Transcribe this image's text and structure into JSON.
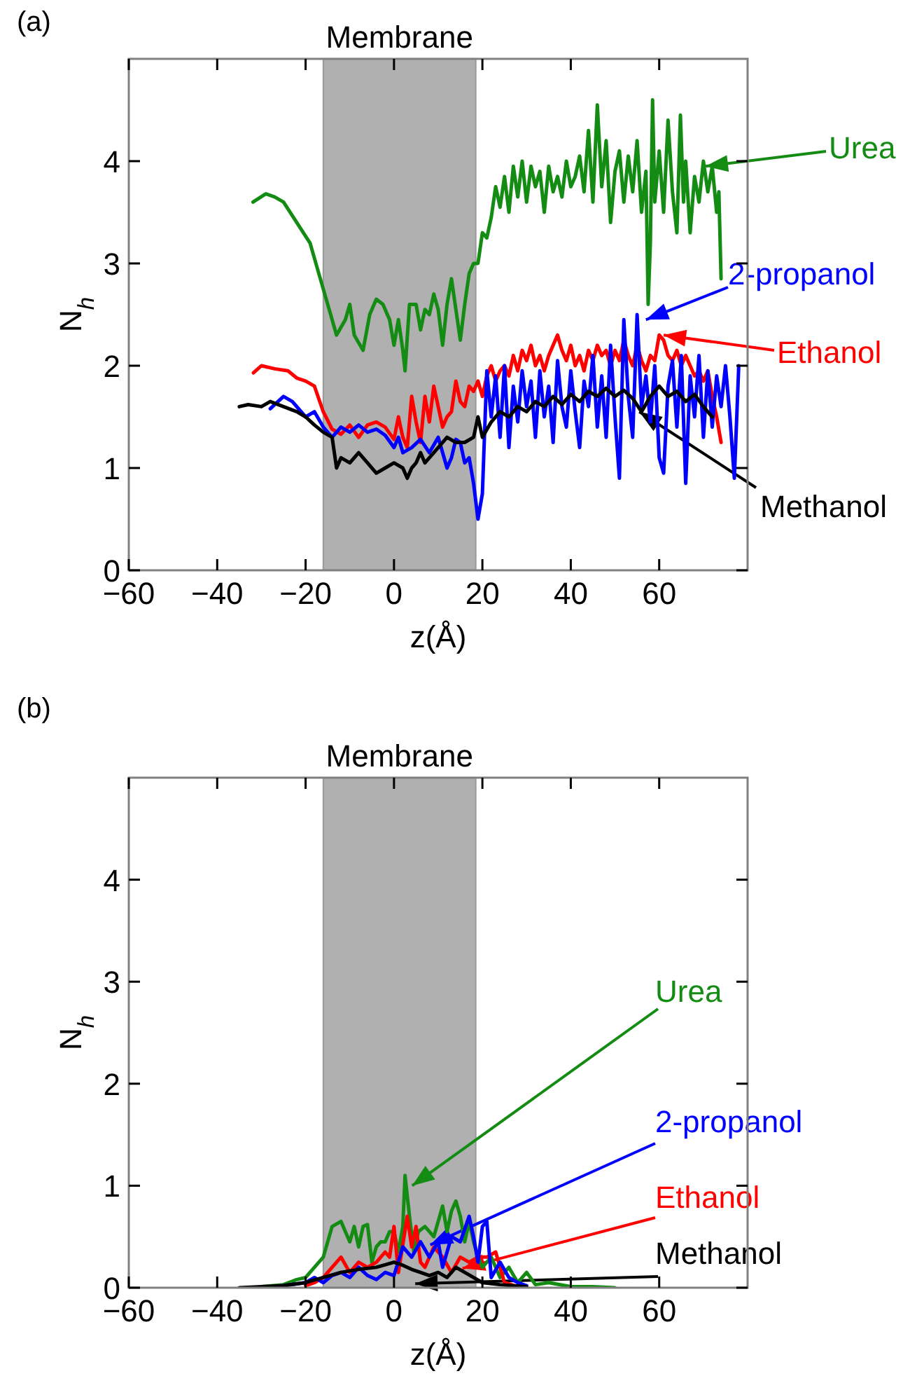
{
  "chart_data": [
    {
      "type": "line",
      "title": "(a)",
      "xlabel": "z(Å)",
      "ylabel": "N$_{h}$",
      "xlim": [
        -60,
        80
      ],
      "ylim": [
        0,
        5
      ],
      "xticks": [
        -60,
        -40,
        -20,
        0,
        20,
        40,
        60
      ],
      "yticks": [
        0,
        1,
        2,
        3,
        4
      ],
      "bands": [
        {
          "axis": "x",
          "from": -16,
          "to": 18.5,
          "label": "Membrane",
          "color": "#b0b0b0"
        }
      ],
      "series": [
        {
          "color": "#148c14",
          "x": [
            -31.9,
            -29,
            -27,
            -25,
            -22,
            -19,
            -17,
            -15,
            -13,
            -11,
            -10,
            -9,
            -7,
            -5.5,
            -4,
            -2.5,
            -1,
            0,
            1,
            2,
            2.5,
            3.5,
            5,
            6,
            7,
            8,
            9,
            10,
            11,
            12,
            13,
            14,
            15,
            16,
            17,
            18,
            19,
            20,
            21,
            22,
            23,
            24,
            25,
            26,
            27,
            28,
            29,
            30,
            31,
            32,
            33,
            34,
            35,
            36,
            37,
            38,
            39,
            40,
            41,
            42,
            43,
            44,
            45,
            46,
            47,
            48,
            49,
            50,
            51,
            52,
            53,
            54,
            55,
            56,
            57,
            57.5,
            58,
            58.5,
            59,
            60,
            61,
            62,
            63,
            64,
            64.8,
            65.5,
            66,
            67,
            68,
            69,
            70,
            71,
            72,
            73,
            73.5,
            74
          ],
          "values": [
            3.6,
            3.68,
            3.65,
            3.6,
            3.4,
            3.2,
            2.9,
            2.6,
            2.3,
            2.45,
            2.6,
            2.3,
            2.15,
            2.5,
            2.65,
            2.6,
            2.45,
            2.2,
            2.45,
            2.15,
            1.95,
            2.6,
            2.6,
            2.35,
            2.55,
            2.5,
            2.7,
            2.55,
            2.2,
            2.6,
            2.85,
            2.55,
            2.25,
            2.6,
            2.9,
            3.0,
            3.0,
            3.3,
            3.25,
            3.45,
            3.75,
            3.55,
            3.85,
            3.5,
            3.95,
            3.65,
            4.0,
            3.6,
            3.95,
            3.75,
            3.9,
            3.5,
            3.95,
            3.7,
            3.85,
            3.65,
            4.0,
            3.75,
            3.85,
            4.05,
            3.7,
            4.3,
            3.6,
            4.55,
            3.75,
            4.2,
            3.4,
            3.9,
            4.1,
            3.6,
            4.05,
            3.7,
            4.2,
            3.5,
            3.9,
            2.6,
            3.2,
            4.6,
            3.6,
            4.1,
            3.5,
            4.4,
            3.7,
            3.3,
            4.45,
            3.6,
            4.0,
            3.3,
            3.85,
            3.6,
            4.0,
            3.7,
            3.95,
            3.5,
            3.7,
            2.85
          ]
        },
        {
          "color": "#ff0000",
          "x": [
            -31.8,
            -30,
            -27,
            -24,
            -22,
            -20,
            -18,
            -16,
            -14,
            -12,
            -10,
            -8,
            -6,
            -4,
            -2,
            0,
            1,
            2,
            3,
            4,
            5,
            6,
            7,
            8,
            9,
            10,
            11,
            12,
            13,
            14,
            15,
            16,
            17,
            18,
            19,
            20,
            21,
            22,
            23,
            24,
            25,
            26,
            27,
            28,
            29,
            30,
            31,
            32,
            33,
            34,
            35,
            36,
            37,
            38,
            39,
            40,
            41,
            42,
            43,
            44,
            45,
            46,
            47,
            48,
            49,
            50,
            51,
            52,
            53,
            54,
            55,
            56,
            57,
            58,
            59,
            60,
            61,
            62,
            63,
            64,
            65,
            66,
            67,
            68,
            69,
            70,
            71,
            72,
            73,
            74
          ],
          "values": [
            1.93,
            2.0,
            1.97,
            1.95,
            1.88,
            1.85,
            1.8,
            1.55,
            1.38,
            1.33,
            1.42,
            1.3,
            1.42,
            1.45,
            1.4,
            1.28,
            1.5,
            1.3,
            1.2,
            1.7,
            1.45,
            1.25,
            1.7,
            1.45,
            1.8,
            1.6,
            1.4,
            1.5,
            1.55,
            1.85,
            1.65,
            1.6,
            1.8,
            1.75,
            1.85,
            1.7,
            1.9,
            2.0,
            1.85,
            1.95,
            2.0,
            1.9,
            2.1,
            1.95,
            2.15,
            2.05,
            2.2,
            2.0,
            2.1,
            1.95,
            2.1,
            2.2,
            2.3,
            2.15,
            2.05,
            2.2,
            2.0,
            2.1,
            1.95,
            2.15,
            2.05,
            2.2,
            2.1,
            2.15,
            2.0,
            2.15,
            2.05,
            2.25,
            2.1,
            2.0,
            2.2,
            2.05,
            1.95,
            2.1,
            2.05,
            2.3,
            2.25,
            2.1,
            2.05,
            2.15,
            2.0,
            2.1,
            2.0,
            1.9,
            1.95,
            1.85,
            1.95,
            1.7,
            1.5,
            1.25
          ]
        },
        {
          "color": "#0000ff",
          "x": [
            -28,
            -25,
            -23,
            -20,
            -18,
            -16,
            -14,
            -12,
            -10,
            -8,
            -6,
            -4,
            -2,
            0,
            1,
            2,
            4,
            6,
            8,
            10,
            12,
            13,
            14,
            15,
            16,
            17,
            18,
            19,
            20,
            21,
            22,
            23,
            24,
            25,
            26,
            27,
            28,
            29,
            30,
            31,
            32,
            33,
            34,
            35,
            36,
            37,
            38,
            39,
            40,
            41,
            42,
            43,
            44,
            45,
            46,
            47,
            48,
            49,
            50,
            51,
            52,
            53,
            54,
            55,
            56,
            57,
            58,
            59,
            60,
            61,
            62,
            63,
            64,
            65,
            66,
            67,
            68,
            69,
            70,
            71,
            72,
            73,
            74,
            75,
            76,
            77,
            78
          ],
          "values": [
            1.58,
            1.7,
            1.65,
            1.5,
            1.55,
            1.4,
            1.3,
            1.4,
            1.35,
            1.42,
            1.35,
            1.38,
            1.32,
            1.2,
            1.3,
            1.15,
            1.2,
            1.28,
            1.15,
            1.3,
            1.0,
            1.1,
            1.28,
            1.25,
            1.05,
            1.1,
            0.85,
            0.5,
            0.75,
            1.95,
            1.5,
            1.9,
            1.3,
            2.0,
            1.2,
            1.8,
            1.45,
            1.95,
            1.6,
            1.85,
            1.3,
            1.95,
            1.5,
            1.8,
            1.25,
            2.05,
            1.6,
            1.4,
            1.95,
            1.55,
            1.2,
            1.85,
            1.6,
            2.1,
            1.4,
            1.9,
            1.3,
            2.2,
            1.5,
            0.9,
            2.45,
            1.7,
            1.3,
            2.5,
            1.6,
            1.9,
            1.45,
            2.0,
            1.1,
            0.95,
            1.8,
            2.05,
            1.4,
            2.1,
            0.85,
            1.9,
            1.5,
            2.1,
            1.3,
            1.95,
            1.4,
            1.9,
            1.6,
            2.0,
            1.5,
            0.9,
            2.0
          ]
        },
        {
          "color": "#000000",
          "x": [
            -35,
            -33,
            -30,
            -28,
            -25,
            -22,
            -20,
            -18,
            -16,
            -14,
            -13,
            -12,
            -10,
            -8,
            -6,
            -4,
            -2,
            0,
            2,
            3,
            4,
            5,
            6,
            7,
            8,
            10,
            12,
            14,
            16,
            18,
            19,
            20,
            22,
            24,
            26,
            28,
            30,
            32,
            34,
            36,
            38,
            40,
            42,
            44,
            46,
            48,
            50,
            52,
            54,
            56,
            58,
            60,
            62,
            64,
            66,
            68,
            70,
            72
          ],
          "values": [
            1.6,
            1.62,
            1.6,
            1.65,
            1.6,
            1.55,
            1.5,
            1.42,
            1.35,
            1.3,
            1.0,
            1.1,
            1.05,
            1.15,
            1.05,
            0.95,
            1.0,
            1.05,
            1.0,
            0.9,
            1.0,
            1.05,
            1.15,
            1.05,
            1.1,
            1.2,
            1.3,
            1.25,
            1.25,
            1.3,
            1.5,
            1.3,
            1.45,
            1.55,
            1.5,
            1.6,
            1.55,
            1.65,
            1.6,
            1.7,
            1.62,
            1.72,
            1.65,
            1.75,
            1.7,
            1.78,
            1.7,
            1.76,
            1.68,
            1.55,
            1.7,
            1.8,
            1.7,
            1.75,
            1.65,
            1.72,
            1.6,
            1.5
          ]
        }
      ],
      "annotations": [
        {
          "text": "Urea",
          "x": 70.5,
          "y": 3.95
        },
        {
          "text": "Ethanol",
          "x": 61,
          "y": 2.3
        },
        {
          "text": "2-propanol",
          "x": 57,
          "y": 2.45
        },
        {
          "text": "Methanol",
          "x": 55.5,
          "y": 1.55
        }
      ]
    },
    {
      "type": "line",
      "title": "(b)",
      "xlabel": "z(Å)",
      "ylabel": "N$_{h}$",
      "xlim": [
        -60,
        80
      ],
      "ylim": [
        0,
        5
      ],
      "xticks": [
        -60,
        -40,
        -20,
        0,
        20,
        40,
        60
      ],
      "yticks": [
        0,
        1,
        2,
        3,
        4
      ],
      "bands": [
        {
          "axis": "x",
          "from": -16,
          "to": 18.5,
          "label": "Membrane",
          "color": "#b0b0b0"
        }
      ],
      "series": [
        {
          "color": "#148c14",
          "x": [
            -30,
            -25,
            -22,
            -20,
            -18,
            -16,
            -14,
            -12,
            -11,
            -10,
            -9,
            -8,
            -7,
            -6,
            -5,
            -4,
            -3,
            -2,
            -1,
            0,
            1,
            2,
            2.5,
            3.5,
            4.5,
            5.5,
            7,
            9,
            10,
            11,
            12,
            13,
            14,
            15,
            16,
            17,
            18,
            19,
            20,
            22,
            24,
            26,
            28,
            30,
            32,
            35,
            40,
            45,
            50
          ],
          "values": [
            0.01,
            0.03,
            0.08,
            0.1,
            0.2,
            0.3,
            0.6,
            0.65,
            0.55,
            0.45,
            0.6,
            0.4,
            0.6,
            0.62,
            0.25,
            0.4,
            0.45,
            0.45,
            0.55,
            0.55,
            0.35,
            0.6,
            1.1,
            0.7,
            0.35,
            0.55,
            0.6,
            0.5,
            0.65,
            0.8,
            0.55,
            0.75,
            0.85,
            0.7,
            0.45,
            0.65,
            0.45,
            0.3,
            0.2,
            0.3,
            0.1,
            0.2,
            0.05,
            0.15,
            0.03,
            0.05,
            0.01,
            0.01,
            0
          ]
        },
        {
          "color": "#ff0000",
          "x": [
            -20,
            -18,
            -16,
            -14,
            -12,
            -10,
            -8,
            -6,
            -4,
            -2,
            -1,
            0,
            1,
            3,
            4,
            5,
            6,
            7,
            9,
            11,
            13,
            15,
            17,
            19,
            21,
            23,
            25,
            28
          ],
          "values": [
            0.02,
            0.05,
            0.1,
            0.2,
            0.3,
            0.15,
            0.25,
            0.2,
            0.25,
            0.35,
            0.3,
            0.6,
            0.15,
            0.7,
            0.4,
            0.6,
            0.25,
            0.2,
            0.4,
            0.3,
            0.15,
            0.3,
            0.25,
            0.3,
            0.3,
            0.35,
            0.05,
            0.01
          ]
        },
        {
          "color": "#0000ff",
          "x": [
            -30,
            -25,
            -20,
            -18,
            -16,
            -14,
            -12,
            -10,
            -8,
            -6,
            -4,
            -2,
            0,
            2,
            4,
            6,
            8,
            10,
            11,
            13,
            15,
            17,
            18,
            19,
            20,
            21,
            22,
            24,
            26,
            28,
            30
          ],
          "values": [
            0,
            0.02,
            0.05,
            0.1,
            0.05,
            0.12,
            0.15,
            0.1,
            0.2,
            0.12,
            0.08,
            0.15,
            0.12,
            0.4,
            0.3,
            0.45,
            0.3,
            0.45,
            0.2,
            0.5,
            0.45,
            0.7,
            0.5,
            0.25,
            0.6,
            0.65,
            0.1,
            0.25,
            0.1,
            0.05,
            0.02
          ]
        },
        {
          "color": "#000000",
          "x": [
            -35,
            -30,
            -25,
            -20,
            -16,
            -12,
            -8,
            -4,
            0,
            2,
            4,
            6,
            8,
            10,
            12,
            14,
            16,
            18,
            20,
            24,
            30
          ],
          "values": [
            0,
            0.01,
            0.02,
            0.05,
            0.1,
            0.15,
            0.18,
            0.2,
            0.25,
            0.22,
            0.18,
            0.15,
            0.12,
            0.15,
            0.1,
            0.2,
            0.15,
            0.1,
            0.05,
            0.03,
            0.01
          ]
        }
      ],
      "annotations": [
        {
          "text": "Urea",
          "x": 4.1,
          "y": 1.0
        },
        {
          "text": "Ethanol",
          "x": 15.5,
          "y": 0.19
        },
        {
          "text": "2-propanol",
          "x": 8.2,
          "y": 0.42
        },
        {
          "text": "Methanol",
          "x": 4.8,
          "y": 0.04
        }
      ]
    }
  ]
}
